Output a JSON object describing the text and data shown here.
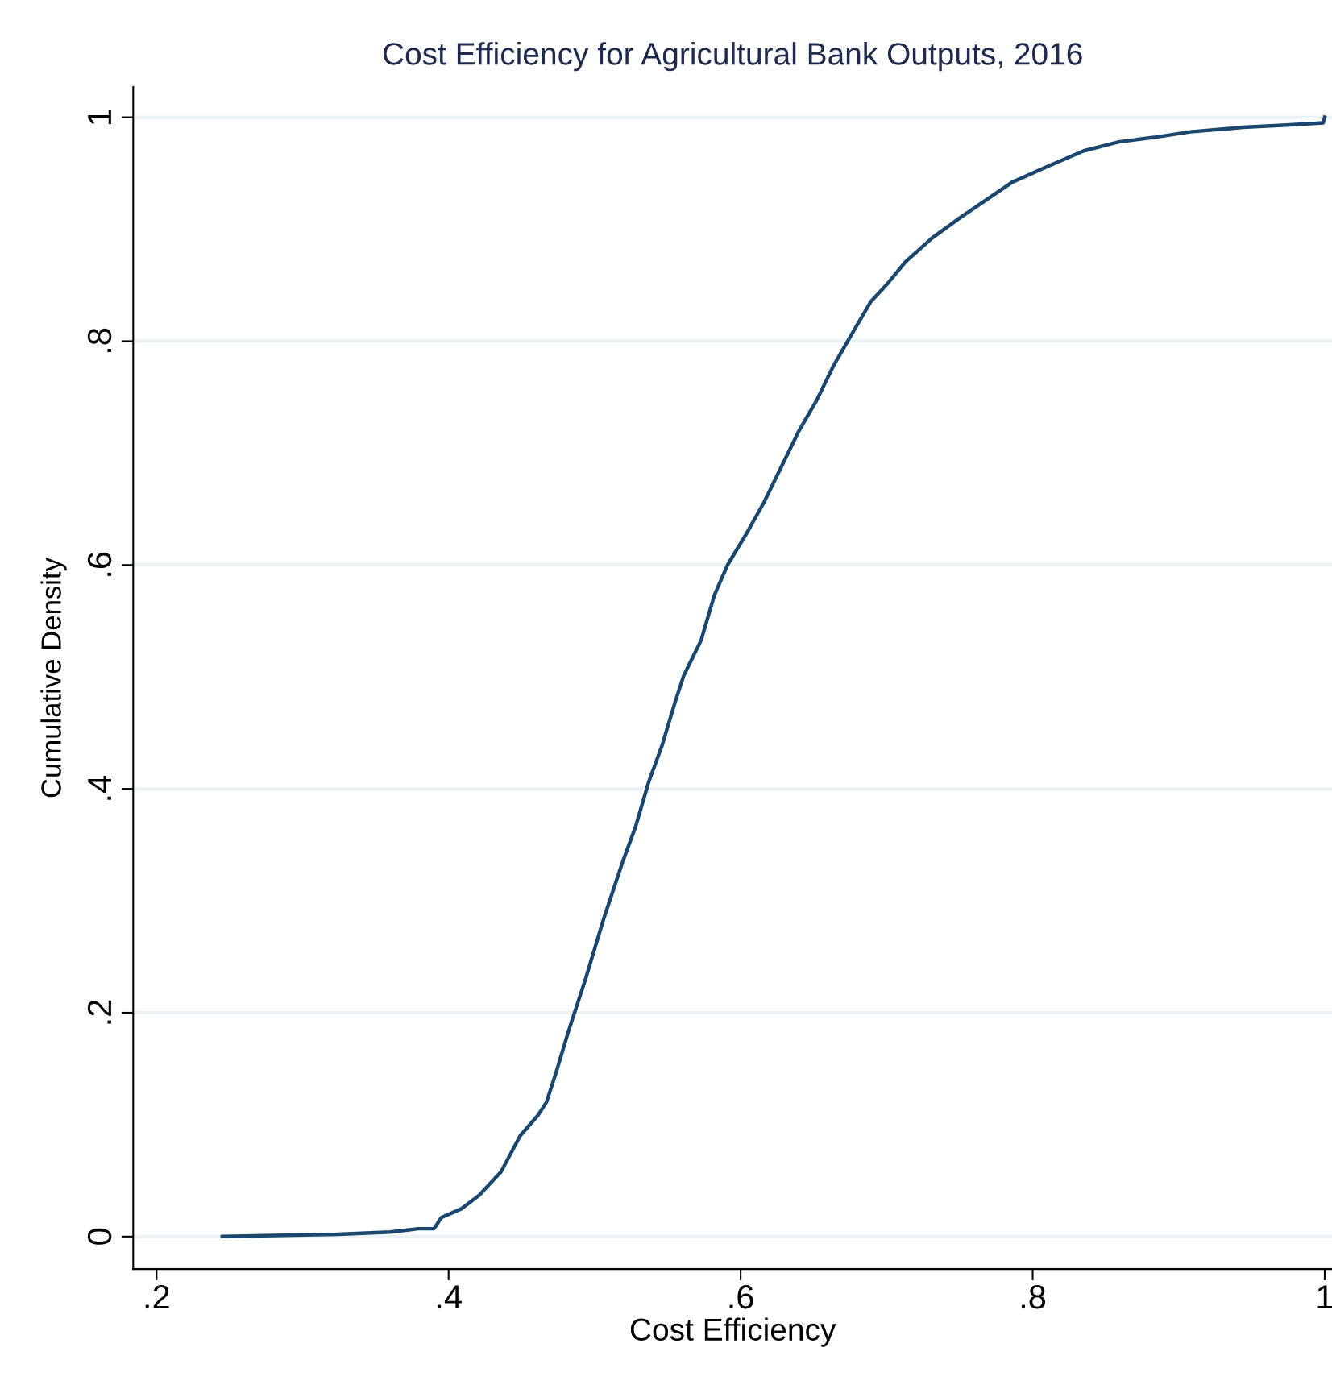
{
  "chart_data": {
    "type": "line",
    "title": "Cost Efficiency for Agricultural Bank Outputs, 2016",
    "xlabel": "Cost Efficiency",
    "ylabel": "Cumulative Density",
    "x": [
      0.245,
      0.324,
      0.36,
      0.379,
      0.39,
      0.395,
      0.409,
      0.421,
      0.436,
      0.449,
      0.461,
      0.467,
      0.473,
      0.482,
      0.494,
      0.506,
      0.519,
      0.528,
      0.537,
      0.546,
      0.555,
      0.561,
      0.573,
      0.582,
      0.591,
      0.604,
      0.616,
      0.628,
      0.64,
      0.652,
      0.664,
      0.68,
      0.689,
      0.701,
      0.713,
      0.731,
      0.75,
      0.768,
      0.786,
      0.81,
      0.835,
      0.859,
      0.883,
      0.908,
      0.944,
      0.974,
      0.999,
      1.0
    ],
    "series": [
      {
        "color": "#1a476f",
        "values": [
          0,
          0.002,
          0.004,
          0.007,
          0.007,
          0.017,
          0.025,
          0.037,
          0.058,
          0.09,
          0.108,
          0.12,
          0.144,
          0.183,
          0.231,
          0.283,
          0.334,
          0.366,
          0.406,
          0.438,
          0.477,
          0.501,
          0.533,
          0.573,
          0.6,
          0.628,
          0.656,
          0.688,
          0.72,
          0.747,
          0.779,
          0.815,
          0.835,
          0.852,
          0.871,
          0.892,
          0.91,
          0.926,
          0.942,
          0.956,
          0.97,
          0.978,
          0.982,
          0.987,
          0.991,
          0.993,
          0.995,
          1.0
        ]
      }
    ],
    "xlim": [
      0.184,
      1.005
    ],
    "ylim": [
      -0.029,
      1.027
    ],
    "xticks": [
      {
        "value": 0.2,
        "label": ".2"
      },
      {
        "value": 0.4,
        "label": ".4"
      },
      {
        "value": 0.6,
        "label": ".6"
      },
      {
        "value": 0.8,
        "label": ".8"
      },
      1
    ],
    "yticks": [
      0,
      {
        "value": 0.2,
        "label": ".2"
      },
      {
        "value": 0.4,
        "label": ".4"
      },
      {
        "value": 0.6,
        "label": ".6"
      },
      {
        "value": 0.8,
        "label": ".8"
      },
      1
    ],
    "grid": "y",
    "marker": "none",
    "line_style": "solid",
    "legend": false
  }
}
